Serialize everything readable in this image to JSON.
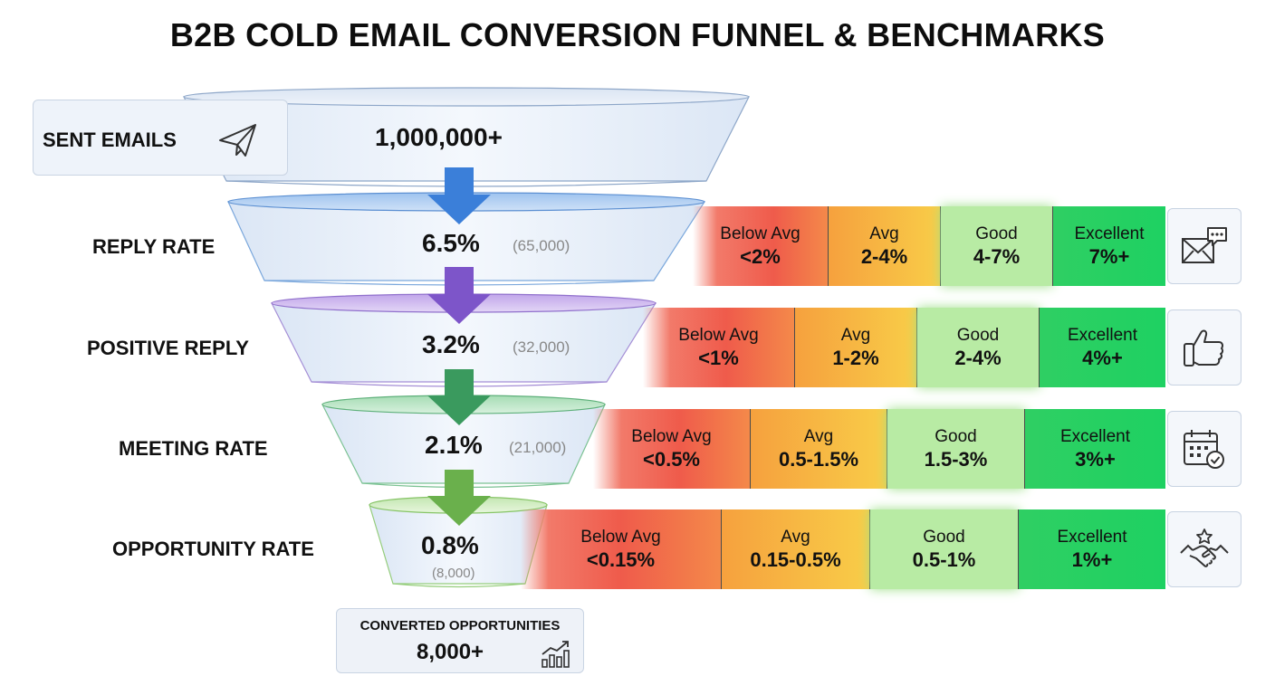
{
  "title": "B2B COLD EMAIL CONVERSION FUNNEL & BENCHMARKS",
  "sent": {
    "label": "SENT EMAILS",
    "value": "1,000,000+",
    "icon": "paper-plane-icon"
  },
  "stages": [
    {
      "label": "REPLY RATE",
      "value": "6.5%",
      "count": "(65,000)",
      "icon": "email-chat-icon",
      "benchmarks": [
        {
          "name": "Below Avg",
          "range": "<2%"
        },
        {
          "name": "Avg",
          "range": "2-4%"
        },
        {
          "name": "Good",
          "range": "4-7%"
        },
        {
          "name": "Excellent",
          "range": "7%+"
        }
      ]
    },
    {
      "label": "POSITIVE REPLY",
      "value": "3.2%",
      "count": "(32,000)",
      "icon": "thumbs-up-icon",
      "benchmarks": [
        {
          "name": "Below Avg",
          "range": "<1%"
        },
        {
          "name": "Avg",
          "range": "1-2%"
        },
        {
          "name": "Good",
          "range": "2-4%"
        },
        {
          "name": "Excellent",
          "range": "4%+"
        }
      ]
    },
    {
      "label": "MEETING RATE",
      "value": "2.1%",
      "count": "(21,000)",
      "icon": "calendar-check-icon",
      "benchmarks": [
        {
          "name": "Below Avg",
          "range": "<0.5%"
        },
        {
          "name": "Avg",
          "range": "0.5-1.5%"
        },
        {
          "name": "Good",
          "range": "1.5-3%"
        },
        {
          "name": "Excellent",
          "range": "3%+"
        }
      ]
    },
    {
      "label": "OPPORTUNITY RATE",
      "value": "0.8%",
      "count": "(8,000)",
      "icon": "handshake-star-icon",
      "benchmarks": [
        {
          "name": "Below Avg",
          "range": "<0.15%"
        },
        {
          "name": "Avg",
          "range": "0.15-0.5%"
        },
        {
          "name": "Good",
          "range": "0.5-1%"
        },
        {
          "name": "Excellent",
          "range": "1%+"
        }
      ]
    }
  ],
  "result": {
    "label": "CONVERTED OPPORTUNITIES",
    "value": "8,000+",
    "icon": "growth-chart-icon"
  },
  "colors": {
    "below_avg": "#ef5b4b",
    "avg": "#f6c43f",
    "good": "#b8eba4",
    "excellent": "#1ed162",
    "arrow_blue": "#3b7fd9",
    "arrow_purple": "#7d55c9",
    "arrow_green": "#3a9a5e",
    "arrow_lightgreen": "#6ab04c"
  }
}
